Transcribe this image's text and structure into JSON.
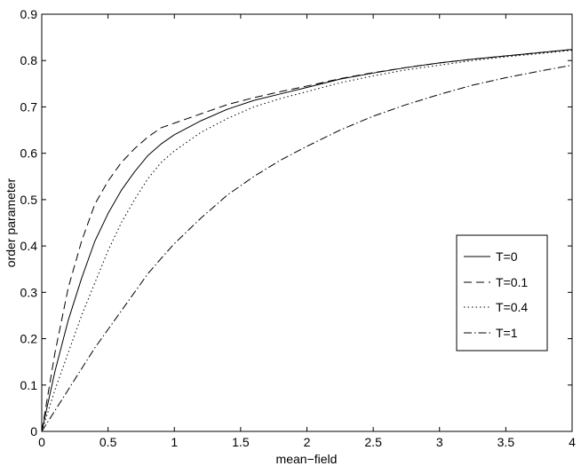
{
  "chart_data": {
    "type": "line",
    "title": "",
    "xlabel": "mean−field",
    "ylabel": "order parameter",
    "xlim": [
      0,
      4
    ],
    "ylim": [
      0,
      0.9
    ],
    "xticks": [
      "0",
      "0.5",
      "1",
      "1.5",
      "2",
      "2.5",
      "3",
      "3.5",
      "4"
    ],
    "yticks": [
      "0",
      "0.1",
      "0.2",
      "0.3",
      "0.4",
      "0.5",
      "0.6",
      "0.7",
      "0.8",
      "0.9"
    ],
    "grid": false,
    "legend_position": "right-center",
    "x": [
      0,
      0.1,
      0.2,
      0.3,
      0.4,
      0.5,
      0.6,
      0.7,
      0.8,
      0.9,
      1.0,
      1.2,
      1.4,
      1.6,
      1.8,
      2.0,
      2.25,
      2.5,
      2.75,
      3.0,
      3.25,
      3.5,
      3.75,
      4.0
    ],
    "series": [
      {
        "name": "T=0",
        "style": "solid",
        "values": [
          0,
          0.13,
          0.24,
          0.33,
          0.41,
          0.47,
          0.52,
          0.56,
          0.595,
          0.62,
          0.64,
          0.67,
          0.695,
          0.714,
          0.728,
          0.742,
          0.76,
          0.773,
          0.785,
          0.795,
          0.803,
          0.81,
          0.817,
          0.824
        ]
      },
      {
        "name": "T=0.1",
        "style": "dashed",
        "values": [
          0,
          0.17,
          0.31,
          0.41,
          0.49,
          0.54,
          0.58,
          0.61,
          0.635,
          0.655,
          0.665,
          0.685,
          0.705,
          0.72,
          0.733,
          0.745,
          0.761,
          0.774,
          0.785,
          0.795,
          0.803,
          0.81,
          0.817,
          0.824
        ]
      },
      {
        "name": "T=0.4",
        "style": "dotted",
        "values": [
          0,
          0.09,
          0.17,
          0.25,
          0.32,
          0.39,
          0.45,
          0.5,
          0.545,
          0.58,
          0.605,
          0.645,
          0.675,
          0.7,
          0.718,
          0.733,
          0.752,
          0.767,
          0.78,
          0.79,
          0.8,
          0.808,
          0.815,
          0.822
        ]
      },
      {
        "name": "T=1",
        "style": "dashdot",
        "values": [
          0,
          0.045,
          0.09,
          0.135,
          0.18,
          0.22,
          0.26,
          0.3,
          0.34,
          0.373,
          0.405,
          0.46,
          0.51,
          0.55,
          0.585,
          0.615,
          0.65,
          0.68,
          0.705,
          0.727,
          0.747,
          0.763,
          0.777,
          0.79
        ]
      }
    ]
  }
}
